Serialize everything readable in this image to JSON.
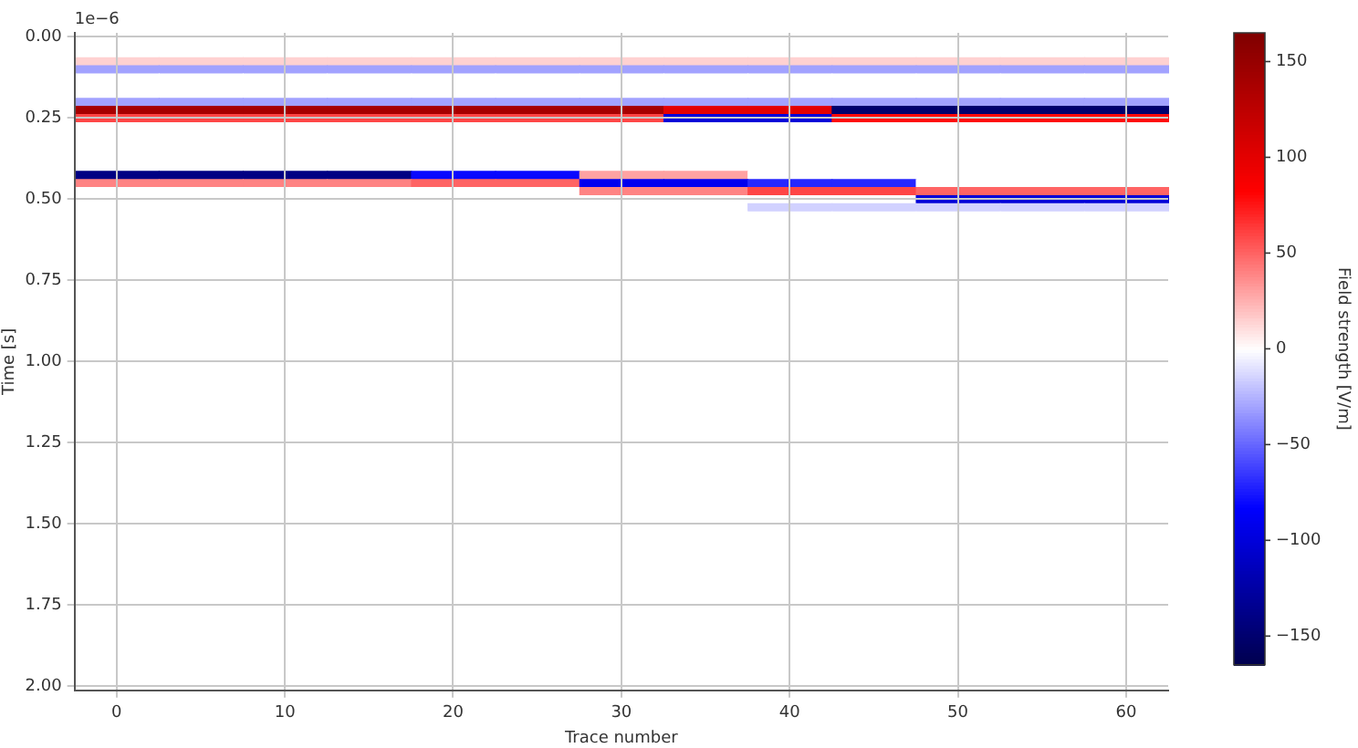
{
  "chart_data": {
    "type": "heatmap",
    "xlabel": "Trace number",
    "ylabel": "Time [s]",
    "clabel": "Field strength [V/m]",
    "annotations": [
      "1e−6"
    ],
    "categories": [
      "0",
      null,
      "10",
      null,
      "20",
      null,
      "30",
      null,
      "40",
      null,
      "50",
      null,
      "60"
    ],
    "y_categories": [
      "0.00",
      null,
      null,
      null,
      null,
      null,
      null,
      null,
      null,
      null,
      "0.25",
      null,
      null,
      null,
      null,
      null,
      null,
      null,
      null,
      null,
      "0.50",
      null,
      null,
      null,
      null,
      null,
      null,
      null,
      null,
      null,
      "0.75",
      null,
      null,
      null,
      null,
      null,
      null,
      null,
      null,
      null,
      "1.00",
      null,
      null,
      null,
      null,
      null,
      null,
      null,
      null,
      null,
      "1.25",
      null,
      null,
      null,
      null,
      null,
      null,
      null,
      null,
      null,
      "1.50",
      null,
      null,
      null,
      null,
      null,
      null,
      null,
      null,
      null,
      "1.75",
      null,
      null,
      null,
      null,
      null,
      null,
      null,
      null,
      null,
      "2.00"
    ],
    "clim": [
      -165,
      165
    ],
    "cticks": [
      -150,
      -100,
      -50,
      0,
      50,
      100,
      150
    ],
    "grid": true,
    "cells": [
      [
        0,
        0,
        0,
        0,
        0,
        0,
        0,
        0,
        0,
        0,
        0,
        0,
        0
      ],
      [
        0,
        0,
        0,
        0,
        0,
        0,
        0,
        0,
        0,
        0,
        0,
        0,
        0
      ],
      [
        0,
        0,
        0,
        0,
        0,
        0,
        0,
        0,
        0,
        0,
        0,
        0,
        0
      ],
      [
        15,
        15,
        15,
        15,
        15,
        15,
        15,
        15,
        15,
        15,
        15,
        15,
        15
      ],
      [
        -30,
        -30,
        -30,
        -30,
        -30,
        -30,
        -30,
        -30,
        -30,
        -30,
        -30,
        -30,
        -30
      ],
      [
        0,
        0,
        0,
        0,
        0,
        0,
        0,
        0,
        0,
        0,
        0,
        0,
        0
      ],
      [
        0,
        0,
        0,
        0,
        0,
        0,
        0,
        0,
        0,
        0,
        0,
        0,
        0
      ],
      [
        0,
        0,
        0,
        0,
        0,
        0,
        0,
        0,
        0,
        0,
        0,
        0,
        0
      ],
      [
        -30,
        -30,
        -30,
        -30,
        -30,
        -30,
        -30,
        -30,
        -30,
        -30,
        -30,
        -30,
        -30
      ],
      [
        140,
        140,
        140,
        140,
        140,
        140,
        140,
        100,
        100,
        -150,
        -150,
        -150,
        -150
      ],
      [
        60,
        60,
        60,
        60,
        60,
        60,
        60,
        -100,
        -100,
        80,
        80,
        80,
        80
      ],
      [
        0,
        0,
        0,
        0,
        0,
        0,
        0,
        0,
        0,
        0,
        0,
        0,
        0
      ],
      [
        0,
        0,
        0,
        0,
        0,
        0,
        0,
        0,
        0,
        0,
        0,
        0,
        0
      ],
      [
        0,
        0,
        0,
        0,
        0,
        0,
        0,
        0,
        0,
        0,
        0,
        0,
        0
      ],
      [
        0,
        0,
        0,
        0,
        0,
        0,
        0,
        0,
        0,
        0,
        0,
        0,
        0
      ],
      [
        0,
        0,
        0,
        0,
        0,
        0,
        0,
        0,
        0,
        0,
        0,
        0,
        0
      ],
      [
        0,
        0,
        0,
        0,
        0,
        0,
        0,
        0,
        0,
        0,
        0,
        0,
        0
      ],
      [
        -140,
        -140,
        -140,
        -140,
        -80,
        -80,
        30,
        30,
        0,
        0,
        0,
        0,
        0
      ],
      [
        40,
        40,
        40,
        40,
        50,
        50,
        -90,
        -90,
        -70,
        -70,
        0,
        0,
        0
      ],
      [
        0,
        0,
        0,
        0,
        0,
        0,
        40,
        40,
        60,
        60,
        50,
        50,
        50
      ],
      [
        0,
        0,
        0,
        0,
        0,
        0,
        0,
        0,
        0,
        0,
        -100,
        -100,
        -100
      ],
      [
        0,
        0,
        0,
        0,
        0,
        0,
        0,
        0,
        -15,
        -15,
        -15,
        -15,
        -15
      ],
      [
        0,
        0,
        0,
        0,
        0,
        0,
        0,
        0,
        0,
        0,
        0,
        0,
        0
      ],
      [
        0,
        0,
        0,
        0,
        0,
        0,
        0,
        0,
        0,
        0,
        0,
        0,
        0
      ],
      [
        0,
        0,
        0,
        0,
        0,
        0,
        0,
        0,
        0,
        0,
        0,
        0,
        0
      ],
      [
        0,
        0,
        0,
        0,
        0,
        0,
        0,
        0,
        0,
        0,
        0,
        0,
        0
      ],
      [
        0,
        0,
        0,
        0,
        0,
        0,
        0,
        0,
        0,
        0,
        0,
        0,
        0
      ],
      [
        0,
        0,
        0,
        0,
        0,
        0,
        0,
        0,
        0,
        0,
        0,
        0,
        0
      ],
      [
        0,
        0,
        0,
        0,
        0,
        0,
        0,
        0,
        0,
        0,
        0,
        0,
        0
      ],
      [
        0,
        0,
        0,
        0,
        0,
        0,
        0,
        0,
        0,
        0,
        0,
        0,
        0
      ],
      [
        0,
        0,
        0,
        0,
        0,
        0,
        0,
        0,
        0,
        0,
        0,
        0,
        0
      ],
      [
        0,
        0,
        0,
        0,
        0,
        0,
        0,
        0,
        0,
        0,
        0,
        0,
        0
      ],
      [
        0,
        0,
        0,
        0,
        0,
        0,
        0,
        0,
        0,
        0,
        0,
        0,
        0
      ],
      [
        0,
        0,
        0,
        0,
        0,
        0,
        0,
        0,
        0,
        0,
        0,
        0,
        0
      ],
      [
        0,
        0,
        0,
        0,
        0,
        0,
        0,
        0,
        0,
        0,
        0,
        0,
        0
      ],
      [
        0,
        0,
        0,
        0,
        0,
        0,
        0,
        0,
        0,
        0,
        0,
        0,
        0
      ],
      [
        0,
        0,
        0,
        0,
        0,
        0,
        0,
        0,
        0,
        0,
        0,
        0,
        0
      ],
      [
        0,
        0,
        0,
        0,
        0,
        0,
        0,
        0,
        0,
        0,
        0,
        0,
        0
      ],
      [
        0,
        0,
        0,
        0,
        0,
        0,
        0,
        0,
        0,
        0,
        0,
        0,
        0
      ],
      [
        0,
        0,
        0,
        0,
        0,
        0,
        0,
        0,
        0,
        0,
        0,
        0,
        0
      ],
      [
        0,
        0,
        0,
        0,
        0,
        0,
        0,
        0,
        0,
        0,
        0,
        0,
        0
      ],
      [
        0,
        0,
        0,
        0,
        0,
        0,
        0,
        0,
        0,
        0,
        0,
        0,
        0
      ],
      [
        0,
        0,
        0,
        0,
        0,
        0,
        0,
        0,
        0,
        0,
        0,
        0,
        0
      ],
      [
        0,
        0,
        0,
        0,
        0,
        0,
        0,
        0,
        0,
        0,
        0,
        0,
        0
      ],
      [
        0,
        0,
        0,
        0,
        0,
        0,
        0,
        0,
        0,
        0,
        0,
        0,
        0
      ],
      [
        0,
        0,
        0,
        0,
        0,
        0,
        0,
        0,
        0,
        0,
        0,
        0,
        0
      ],
      [
        0,
        0,
        0,
        0,
        0,
        0,
        0,
        0,
        0,
        0,
        0,
        0,
        0
      ],
      [
        0,
        0,
        0,
        0,
        0,
        0,
        0,
        0,
        0,
        0,
        0,
        0,
        0
      ],
      [
        0,
        0,
        0,
        0,
        0,
        0,
        0,
        0,
        0,
        0,
        0,
        0,
        0
      ],
      [
        0,
        0,
        0,
        0,
        0,
        0,
        0,
        0,
        0,
        0,
        0,
        0,
        0
      ],
      [
        0,
        0,
        0,
        0,
        0,
        0,
        0,
        0,
        0,
        0,
        0,
        0,
        0
      ],
      [
        0,
        0,
        0,
        0,
        0,
        0,
        0,
        0,
        0,
        0,
        0,
        0,
        0
      ],
      [
        0,
        0,
        0,
        0,
        0,
        0,
        0,
        0,
        0,
        0,
        0,
        0,
        0
      ],
      [
        0,
        0,
        0,
        0,
        0,
        0,
        0,
        0,
        0,
        0,
        0,
        0,
        0
      ],
      [
        0,
        0,
        0,
        0,
        0,
        0,
        0,
        0,
        0,
        0,
        0,
        0,
        0
      ],
      [
        0,
        0,
        0,
        0,
        0,
        0,
        0,
        0,
        0,
        0,
        0,
        0,
        0
      ],
      [
        0,
        0,
        0,
        0,
        0,
        0,
        0,
        0,
        0,
        0,
        0,
        0,
        0
      ],
      [
        0,
        0,
        0,
        0,
        0,
        0,
        0,
        0,
        0,
        0,
        0,
        0,
        0
      ],
      [
        0,
        0,
        0,
        0,
        0,
        0,
        0,
        0,
        0,
        0,
        0,
        0,
        0
      ],
      [
        0,
        0,
        0,
        0,
        0,
        0,
        0,
        0,
        0,
        0,
        0,
        0,
        0
      ],
      [
        0,
        0,
        0,
        0,
        0,
        0,
        0,
        0,
        0,
        0,
        0,
        0,
        0
      ],
      [
        0,
        0,
        0,
        0,
        0,
        0,
        0,
        0,
        0,
        0,
        0,
        0,
        0
      ],
      [
        0,
        0,
        0,
        0,
        0,
        0,
        0,
        0,
        0,
        0,
        0,
        0,
        0
      ],
      [
        0,
        0,
        0,
        0,
        0,
        0,
        0,
        0,
        0,
        0,
        0,
        0,
        0
      ],
      [
        0,
        0,
        0,
        0,
        0,
        0,
        0,
        0,
        0,
        0,
        0,
        0,
        0
      ],
      [
        0,
        0,
        0,
        0,
        0,
        0,
        0,
        0,
        0,
        0,
        0,
        0,
        0
      ],
      [
        0,
        0,
        0,
        0,
        0,
        0,
        0,
        0,
        0,
        0,
        0,
        0,
        0
      ],
      [
        0,
        0,
        0,
        0,
        0,
        0,
        0,
        0,
        0,
        0,
        0,
        0,
        0
      ],
      [
        0,
        0,
        0,
        0,
        0,
        0,
        0,
        0,
        0,
        0,
        0,
        0,
        0
      ],
      [
        0,
        0,
        0,
        0,
        0,
        0,
        0,
        0,
        0,
        0,
        0,
        0,
        0
      ],
      [
        0,
        0,
        0,
        0,
        0,
        0,
        0,
        0,
        0,
        0,
        0,
        0,
        0
      ],
      [
        0,
        0,
        0,
        0,
        0,
        0,
        0,
        0,
        0,
        0,
        0,
        0,
        0
      ],
      [
        0,
        0,
        0,
        0,
        0,
        0,
        0,
        0,
        0,
        0,
        0,
        0,
        0
      ],
      [
        0,
        0,
        0,
        0,
        0,
        0,
        0,
        0,
        0,
        0,
        0,
        0,
        0
      ],
      [
        0,
        0,
        0,
        0,
        0,
        0,
        0,
        0,
        0,
        0,
        0,
        0,
        0
      ],
      [
        0,
        0,
        0,
        0,
        0,
        0,
        0,
        0,
        0,
        0,
        0,
        0,
        0
      ],
      [
        0,
        0,
        0,
        0,
        0,
        0,
        0,
        0,
        0,
        0,
        0,
        0,
        0
      ],
      [
        0,
        0,
        0,
        0,
        0,
        0,
        0,
        0,
        0,
        0,
        0,
        0,
        0
      ],
      [
        0,
        0,
        0,
        0,
        0,
        0,
        0,
        0,
        0,
        0,
        0,
        0,
        0
      ],
      [
        0,
        0,
        0,
        0,
        0,
        0,
        0,
        0,
        0,
        0,
        0,
        0,
        0
      ],
      [
        0,
        0,
        0,
        0,
        0,
        0,
        0,
        0,
        0,
        0,
        0,
        0,
        0
      ]
    ]
  }
}
